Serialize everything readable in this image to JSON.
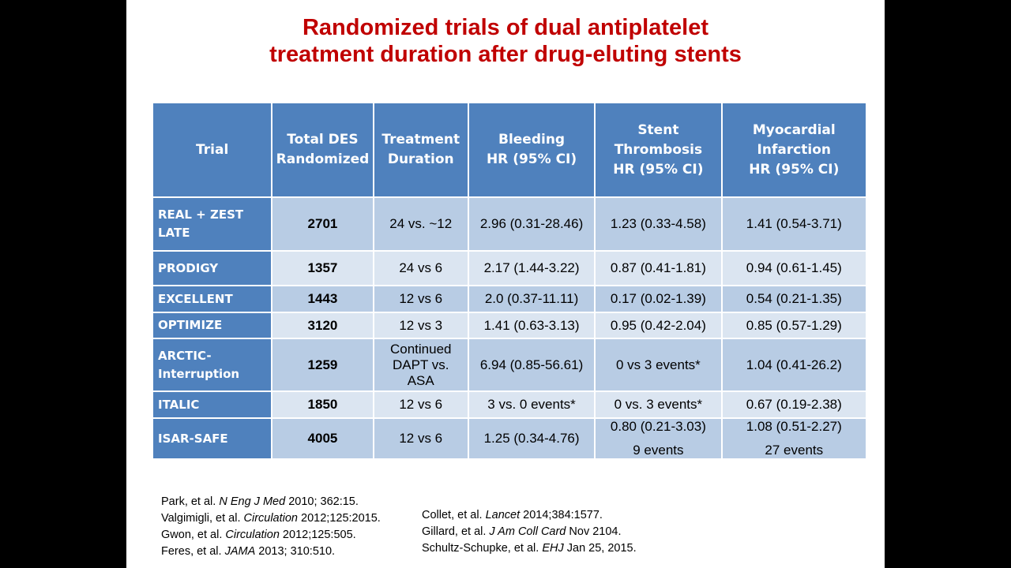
{
  "title": {
    "line1": "Randomized trials of dual antiplatelet",
    "line2": "treatment duration after drug-eluting stents"
  },
  "table": {
    "headers": {
      "trial": "Trial",
      "total_1": "Total  DES",
      "total_2": "Randomized",
      "duration_1": "Treatment",
      "duration_2": "Duration",
      "bleeding_1": "Bleeding",
      "bleeding_2": "HR (95% CI)",
      "stent_1": "Stent",
      "stent_2": "Thrombosis",
      "stent_3": "HR (95% CI)",
      "mi_1": "Myocardial",
      "mi_2": "Infarction",
      "mi_3": "HR (95% CI)"
    },
    "rows": [
      {
        "trial": "REAL + ZEST LATE",
        "total": "2701",
        "duration": "24 vs. ~12",
        "bleeding": "2.96 (0.31-28.46)",
        "stent": "1.23 (0.33-4.58)",
        "mi": "1.41 (0.54-3.71)"
      },
      {
        "trial": "PRODIGY",
        "total": "1357",
        "duration": "24 vs 6",
        "bleeding": "2.17 (1.44-3.22)",
        "stent": "0.87 (0.41-1.81)",
        "mi": "0.94 (0.61-1.45)"
      },
      {
        "trial": "EXCELLENT",
        "total": "1443",
        "duration": "12 vs 6",
        "bleeding": "2.0 (0.37-11.11)",
        "stent": "0.17 (0.02-1.39)",
        "mi": "0.54 (0.21-1.35)"
      },
      {
        "trial": "OPTIMIZE",
        "total": "3120",
        "duration": "12 vs 3",
        "bleeding": "1.41 (0.63-3.13)",
        "stent": "0.95 (0.42-2.04)",
        "mi": "0.85 (0.57-1.29)"
      },
      {
        "trial_1": "ARCTIC-",
        "trial_2": "Interruption",
        "total": "1259",
        "duration_1": "Continued",
        "duration_2": "DAPT vs.",
        "duration_3": "ASA",
        "bleeding": "6.94 (0.85-56.61)",
        "stent": "0 vs 3 events*",
        "mi": "1.04 (0.41-26.2)"
      },
      {
        "trial": "ITALIC",
        "total": "1850",
        "duration": "12 vs 6",
        "bleeding": "3 vs. 0 events*",
        "stent": "0 vs. 3 events*",
        "mi": "0.67 (0.19-2.38)"
      },
      {
        "trial": "ISAR-SAFE",
        "total": "4005",
        "duration": "12 vs 6",
        "bleeding": "1.25 (0.34-4.76)",
        "stent_1": "0.80 (0.21-3.03)",
        "stent_2": "9 events",
        "mi_1": "1.08 (0.51-2.27)",
        "mi_2": "27 events"
      }
    ]
  },
  "references_left": [
    {
      "pre": "Park, et al. ",
      "journal": "N Eng J Med",
      "post": " 2010;  362:15."
    },
    {
      "pre": "Valgimigli, et al. ",
      "journal": "Circulation",
      "post": " 2012;125:2015."
    },
    {
      "pre": "Gwon, et al. ",
      "journal": "Circulation",
      "post": " 2012;125:505."
    },
    {
      "pre": "Feres, et al. ",
      "journal": "JAMA",
      "post": " 2013; 310:510."
    }
  ],
  "references_right": [
    {
      "pre": "Collet, et al. ",
      "journal": "Lancet",
      "post": " 2014;384:1577."
    },
    {
      "pre": "Gillard, et al. ",
      "journal": "J Am Coll Card",
      "post": " Nov 2104."
    },
    {
      "pre": "Schultz-Schupke, et al. ",
      "journal": "EHJ",
      "post": " Jan 25, 2015."
    }
  ]
}
